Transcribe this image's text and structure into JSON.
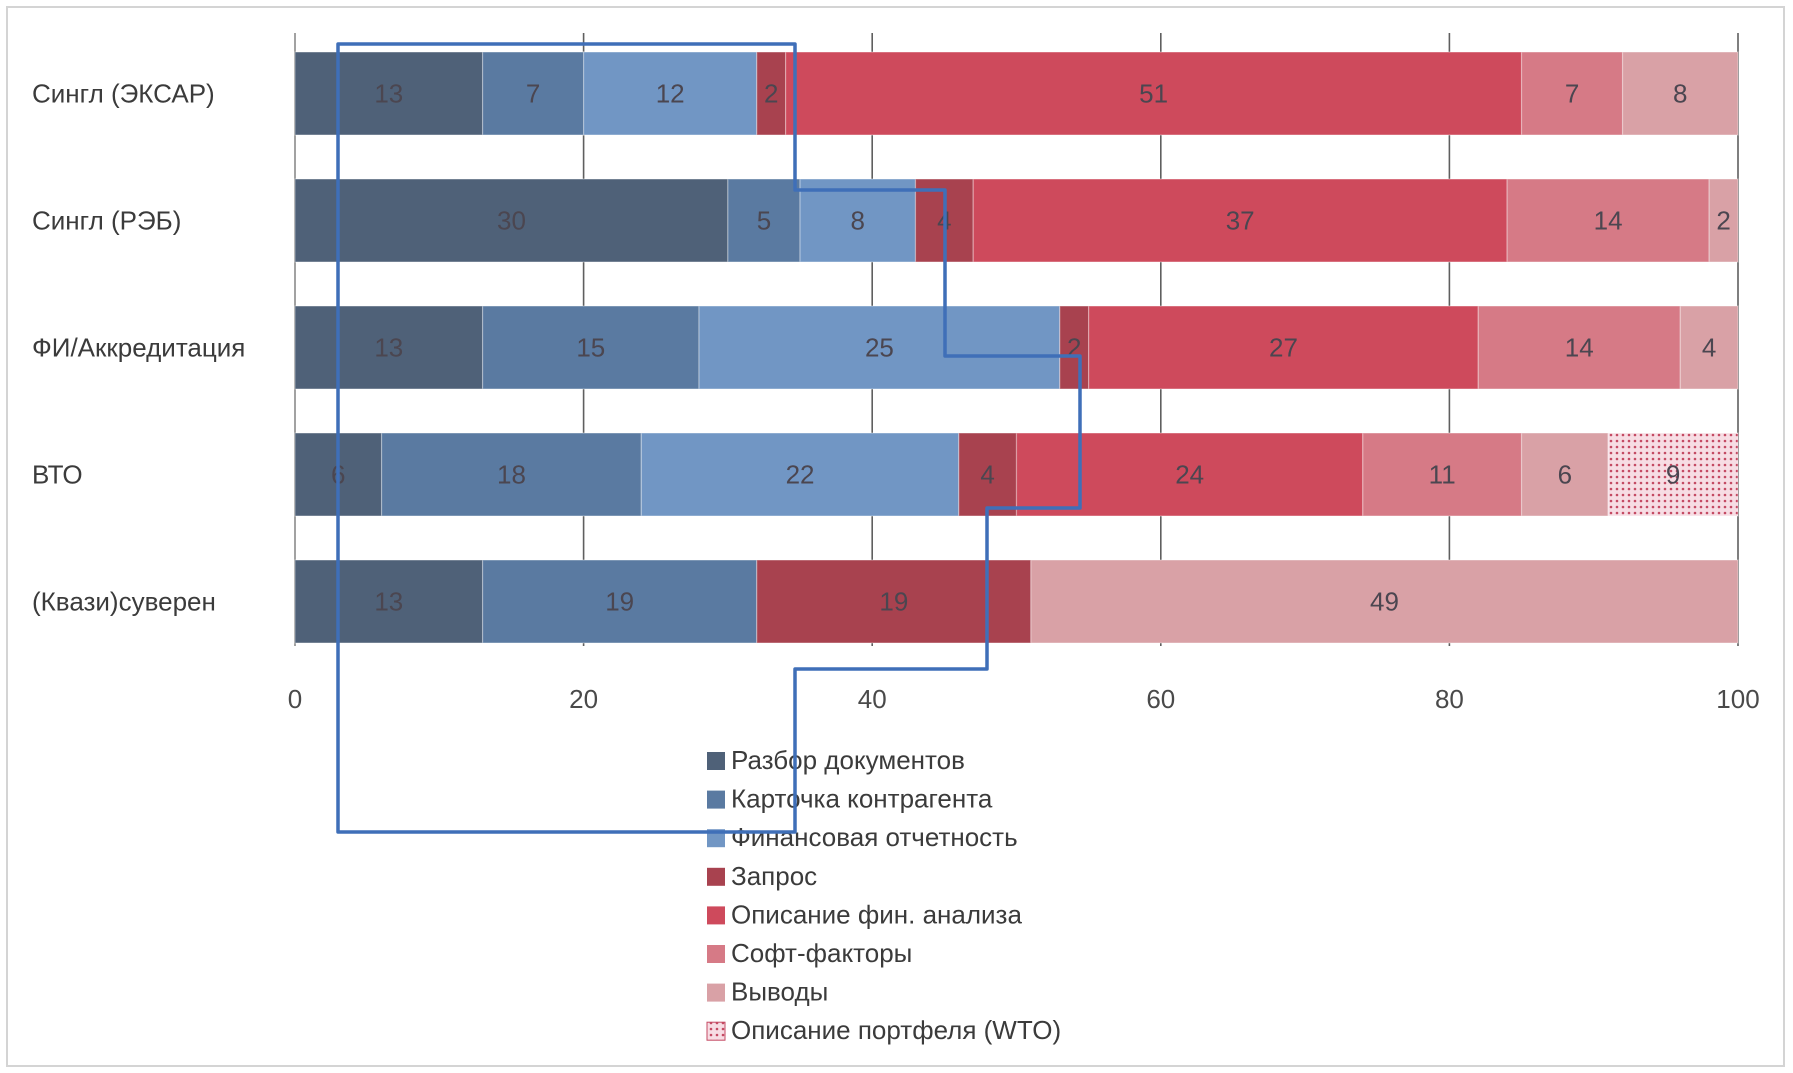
{
  "chart_data": {
    "type": "bar",
    "orientation": "horizontal",
    "stacked": true,
    "categories": [
      "Сингл (ЭКСАР)",
      "Сингл (РЭБ)",
      "ФИ/Аккредитация",
      "ВТО",
      "(Квази)суверен"
    ],
    "series": [
      {
        "name": "Разбор документов",
        "color": "#4f6178",
        "values": [
          13,
          30,
          13,
          6,
          13
        ]
      },
      {
        "name": "Карточка контрагента",
        "color": "#5a7aa1",
        "values": [
          7,
          5,
          15,
          18,
          19
        ]
      },
      {
        "name": "Финансовая отчетность",
        "color": "#7196c4",
        "values": [
          12,
          8,
          25,
          22,
          0
        ]
      },
      {
        "name": "Запрос",
        "color": "#a8424f",
        "values": [
          2,
          4,
          2,
          4,
          19
        ]
      },
      {
        "name": "Описание фин. анализа",
        "color": "#ce4a5c",
        "values": [
          51,
          37,
          27,
          24,
          0
        ]
      },
      {
        "name": "Софт-факторы",
        "color": "#d67a86",
        "values": [
          7,
          14,
          14,
          11,
          0
        ]
      },
      {
        "name": "Выводы",
        "color": "#d9a1a6",
        "values": [
          8,
          2,
          4,
          6,
          49
        ]
      },
      {
        "name": "Описание портфеля (WTO)",
        "color": "#e8a9b8",
        "pattern": "dots",
        "values": [
          0,
          0,
          0,
          9,
          0
        ]
      }
    ],
    "xlim": [
      0,
      100
    ],
    "xticks": [
      0,
      20,
      40,
      60,
      80,
      100
    ],
    "grid": true,
    "legend_position": "bottom-center",
    "annotation": "hand-drawn blue outline overlay"
  }
}
